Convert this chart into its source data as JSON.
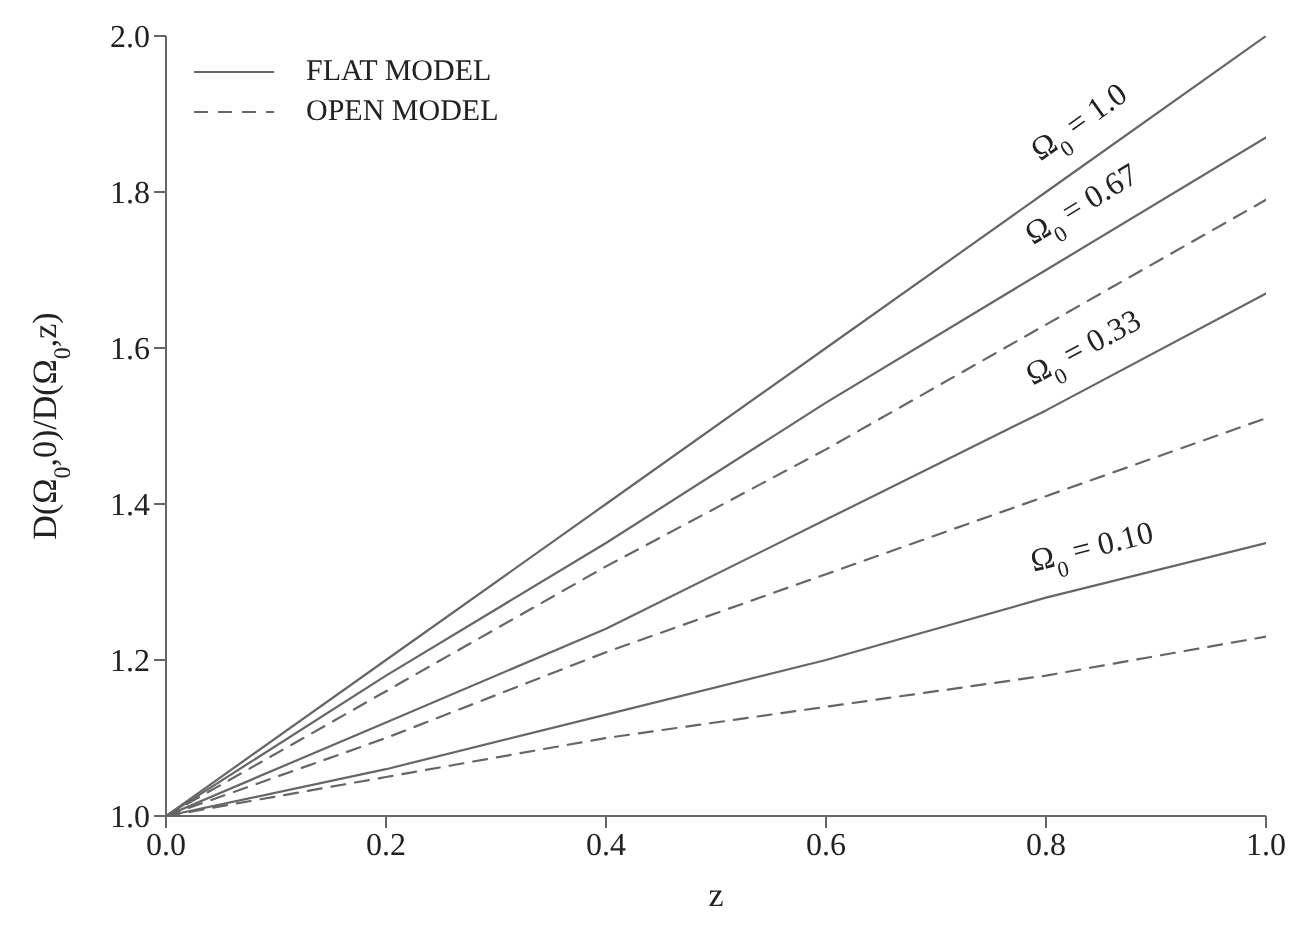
{
  "chart_data": {
    "type": "line",
    "xlabel": "z",
    "ylabel": "D(Ω$_{0}$,0)/D(Ω$_{0}$,z)",
    "x": [
      0,
      0.2,
      0.4,
      0.6,
      0.8,
      1.0
    ],
    "xlim": [
      0,
      1
    ],
    "xticks": [
      {
        "value": 0,
        "label": "0.0"
      },
      0.2,
      0.4,
      0.6,
      0.8,
      {
        "value": 1,
        "label": "1.0"
      }
    ],
    "ylim": [
      1,
      2
    ],
    "yticks": [
      {
        "value": 1,
        "label": "1.0"
      },
      1.2,
      1.4,
      1.6,
      1.8,
      {
        "value": 2,
        "label": "2.0"
      }
    ],
    "legend": "top left",
    "marker": "none",
    "series": [
      {
        "name": "FLAT MODEL",
        "color": "#666666",
        "line_style": "solid",
        "values": [
          1.0,
          1.2,
          1.4,
          1.6,
          1.8,
          2.0
        ]
      },
      {
        "color": "#666666",
        "line_style": "solid",
        "values": [
          1.0,
          1.18,
          1.35,
          1.53,
          1.7,
          1.87
        ]
      },
      {
        "name": "OPEN MODEL",
        "color": "#666666",
        "line_style": "dashed",
        "values": [
          1.0,
          1.16,
          1.32,
          1.47,
          1.63,
          1.79
        ]
      },
      {
        "color": "#666666",
        "line_style": "solid",
        "values": [
          1.0,
          1.12,
          1.24,
          1.38,
          1.52,
          1.67
        ]
      },
      {
        "color": "#666666",
        "line_style": "dashed",
        "values": [
          1.0,
          1.1,
          1.21,
          1.31,
          1.41,
          1.51
        ]
      },
      {
        "color": "#666666",
        "line_style": "solid",
        "values": [
          1.0,
          1.06,
          1.13,
          1.2,
          1.28,
          1.35
        ]
      },
      {
        "color": "#666666",
        "line_style": "dashed",
        "values": [
          1.0,
          1.05,
          1.1,
          1.14,
          1.18,
          1.23
        ]
      }
    ],
    "annotations": [
      "Ω$_{0}$ = 1.0",
      "Ω$_{0}$ = 0.67",
      "Ω$_{0}$ = 0.33",
      "Ω$_{0}$ = 0.10"
    ]
  }
}
